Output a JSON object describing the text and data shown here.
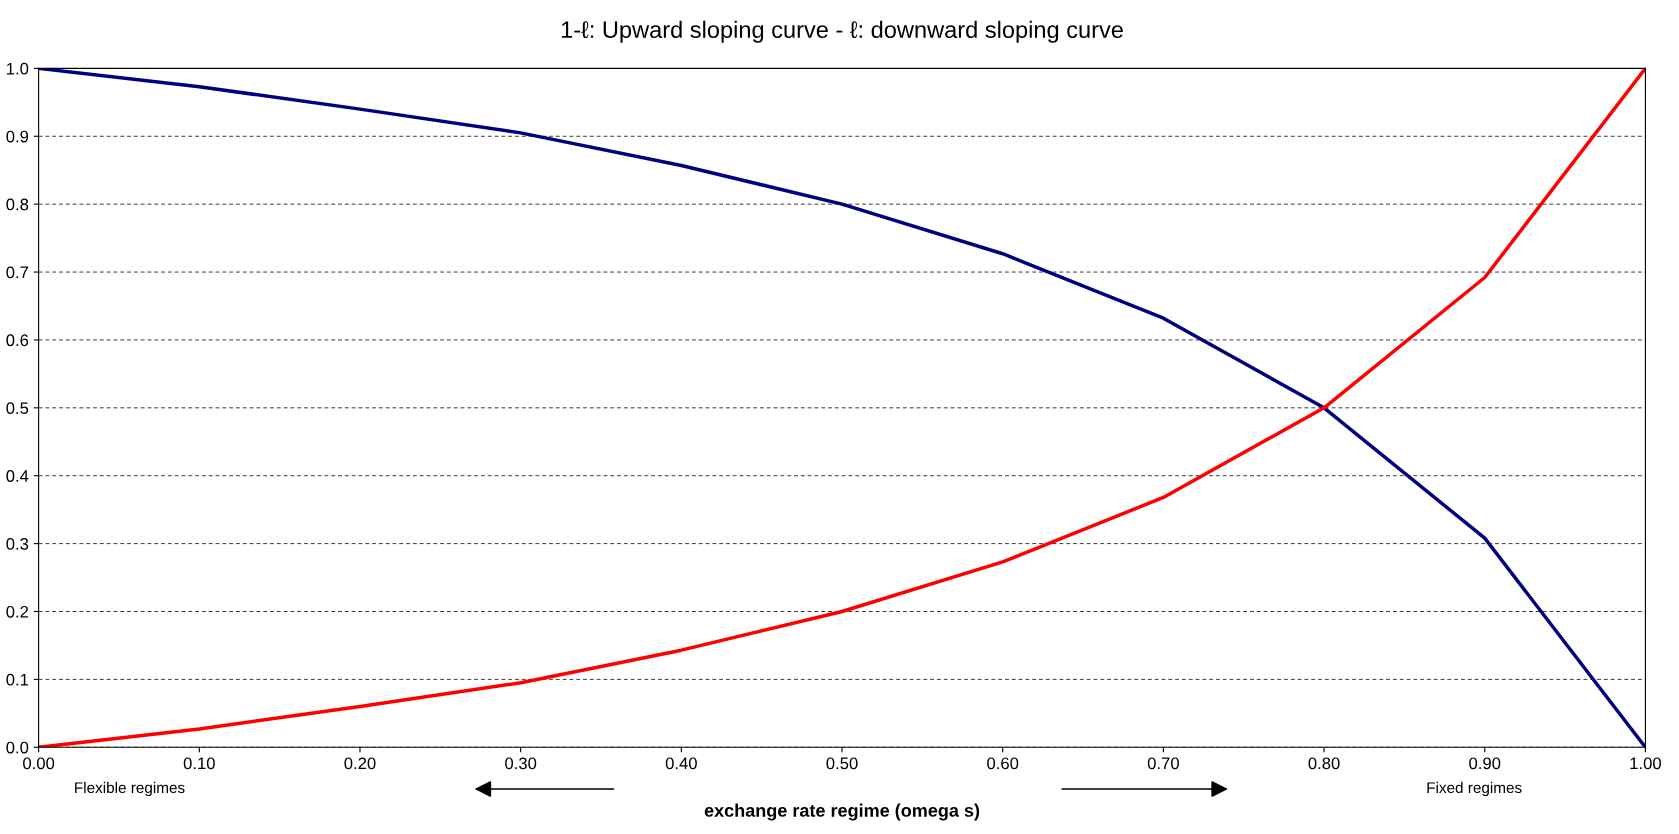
{
  "chart_data": {
    "type": "line",
    "title": "1-ℓ: Upward sloping curve - ℓ: downward sloping curve",
    "xlabel": "exchange rate regime (omega s)",
    "x": [
      0,
      0.1,
      0.2,
      0.3,
      0.4,
      0.5,
      0.6,
      0.7,
      0.8,
      0.9,
      1.0
    ],
    "series": [
      {
        "color": "#000080",
        "values": [
          1.0,
          0.973,
          0.94,
          0.905,
          0.857,
          0.8,
          0.727,
          0.632,
          0.5,
          0.308,
          0.0
        ]
      },
      {
        "color": "#ff0000",
        "values": [
          0.0,
          0.027,
          0.06,
          0.095,
          0.143,
          0.2,
          0.273,
          0.368,
          0.5,
          0.692,
          1.0
        ]
      }
    ],
    "xlim": [
      0,
      1
    ],
    "ylim": [
      0,
      1
    ],
    "xticks": [
      {
        "value": 0,
        "label": "0.00"
      },
      {
        "value": 0.1,
        "label": "0.10"
      },
      {
        "value": 0.2,
        "label": "0.20"
      },
      {
        "value": 0.3,
        "label": "0.30"
      },
      {
        "value": 0.4,
        "label": "0.40"
      },
      {
        "value": 0.5,
        "label": "0.50"
      },
      {
        "value": 0.6,
        "label": "0.60"
      },
      {
        "value": 0.7,
        "label": "0.70"
      },
      {
        "value": 0.8,
        "label": "0.80"
      },
      {
        "value": 0.9,
        "label": "0.90"
      },
      {
        "value": 1,
        "label": "1.00"
      }
    ],
    "yticks": [
      {
        "value": 0,
        "label": "0.0"
      },
      {
        "value": 0.1,
        "label": "0.1"
      },
      {
        "value": 0.2,
        "label": "0.2"
      },
      {
        "value": 0.3,
        "label": "0.3"
      },
      {
        "value": 0.4,
        "label": "0.4"
      },
      {
        "value": 0.5,
        "label": "0.5"
      },
      {
        "value": 0.6,
        "label": "0.6"
      },
      {
        "value": 0.7,
        "label": "0.7"
      },
      {
        "value": 0.8,
        "label": "0.8"
      },
      {
        "value": 0.9,
        "label": "0.9"
      },
      {
        "value": 1,
        "label": "1.0"
      }
    ],
    "grid": "y",
    "line_style": "solid",
    "marker": "none",
    "legend": false,
    "annotations": [
      "Flexible regimes",
      "Fixed regimes"
    ]
  }
}
